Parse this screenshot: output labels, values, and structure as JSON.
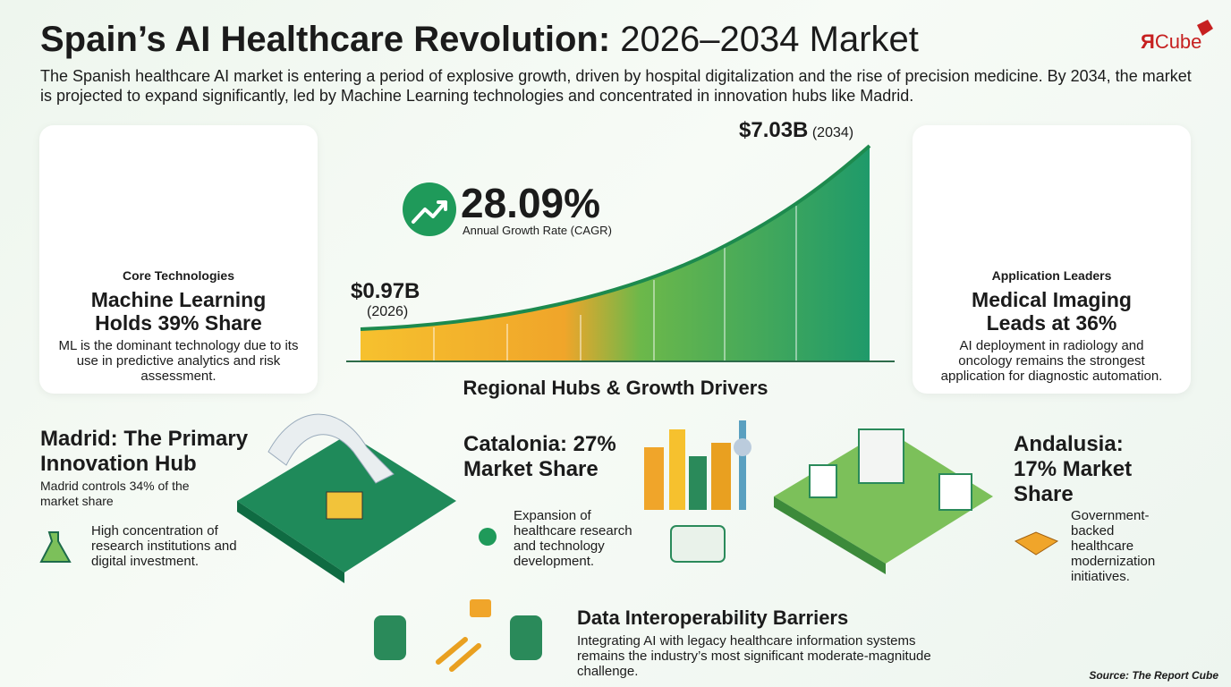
{
  "header": {
    "title_bold": "Spain’s AI Healthcare Revolution:",
    "title_rest": "2026–2034 Market",
    "description": "The Spanish healthcare AI market is entering a period of explosive growth, driven by hospital digitalization and the rise of precision medicine. By 2034, the market is projected to expand significantly, led by Machine Learning technologies and concentrated in innovation hubs like Madrid.",
    "logo_mark": "Я",
    "logo_text": "Cube"
  },
  "growth": {
    "start_value": "$0.97B",
    "start_year": "(2026)",
    "end_value": "$7.03B",
    "end_year": "(2034)",
    "cagr": "28.09%",
    "cagr_label": "Annual Growth Rate (CAGR)"
  },
  "cards": [
    {
      "label": "Core Technologies",
      "heading": "Machine Learning Holds 39% Share",
      "text": "ML is the dominant technology due to its use in predictive analytics and risk assessment."
    },
    {
      "label": "Application Leaders",
      "heading": "Medical Imaging Leads at 36%",
      "text": "AI deployment in radiology and oncology remains the strongest application for diagnostic automation."
    }
  ],
  "regions_heading": "Regional Hubs & Growth Drivers",
  "regions": [
    {
      "heading": "Madrid: The Primary Innovation Hub",
      "subtext": "Madrid controls 34% of the market share",
      "text": "High concentration of research institutions and digital investment."
    },
    {
      "heading": "Catalonia: 27% Market Share",
      "text": "Expansion of healthcare research and technology development."
    },
    {
      "heading": "Andalusia: 17% Market Share",
      "text": "Government-backed healthcare modernization initiatives."
    }
  ],
  "barrier": {
    "heading": "Data Interoperability Barriers",
    "text": "Integrating AI with legacy healthcare information systems remains the industry’s most significant moderate-magnitude challenge."
  },
  "source": "Source: The Report Cube"
}
